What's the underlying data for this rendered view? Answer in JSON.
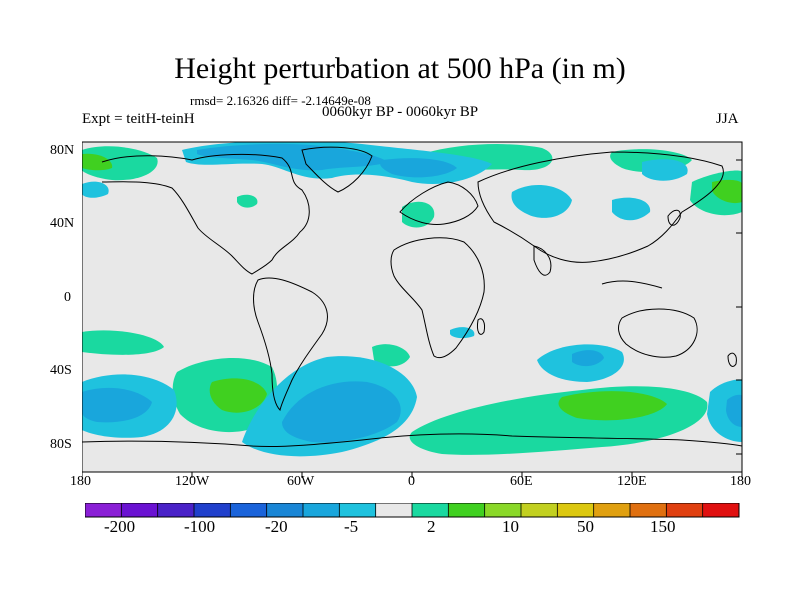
{
  "title": "Height perturbation at 500 hPa (in m)",
  "stats": "rmsd= 2.16326 diff= -2.14649e-08",
  "experiment": "Expt = teitH-teinH",
  "period": "0060kyr BP - 0060kyr BP",
  "season": "JJA",
  "map": {
    "projection": "cylindrical equidistant",
    "lat_range": [
      -90,
      90
    ],
    "lon_range": [
      -180,
      180
    ],
    "lat_ticks": [
      "80N",
      "40N",
      "0",
      "40S",
      "80S"
    ],
    "lon_ticks": [
      "180",
      "120W",
      "60W",
      "0",
      "60E",
      "120E",
      "180"
    ],
    "background_color": "#e8e8e8"
  },
  "colorbar": {
    "colors": [
      "#8a1fd6",
      "#6a12d2",
      "#4a22c8",
      "#2040cc",
      "#1a63da",
      "#1986d6",
      "#19a6dc",
      "#1fc2de",
      "#e8e8e8",
      "#1ad9a0",
      "#40d020",
      "#8ad828",
      "#c2d020",
      "#dcc810",
      "#e0a010",
      "#e07010",
      "#e04010",
      "#e01010"
    ],
    "labels": [
      "-200",
      "-100",
      "-20",
      "-5",
      "2",
      "10",
      "50",
      "150"
    ]
  }
}
